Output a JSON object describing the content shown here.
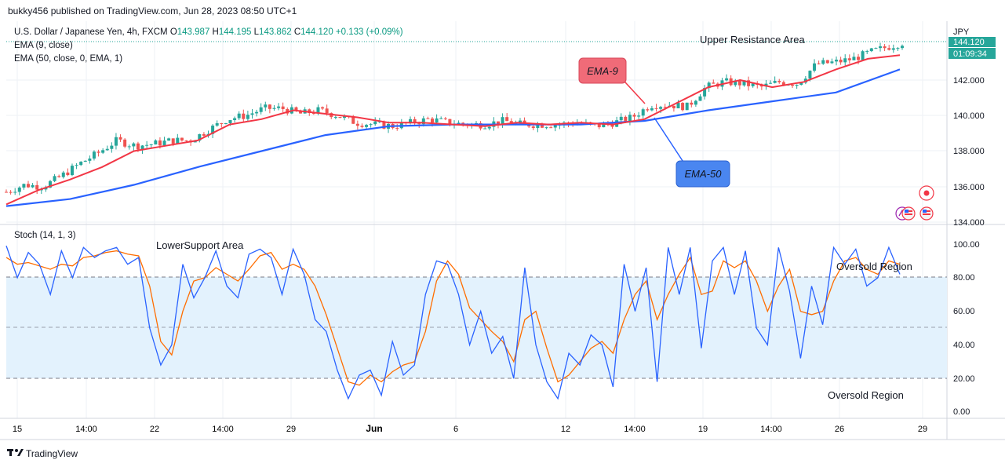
{
  "header": {
    "publisher_line": "bukky456 published on TradingView.com, Jun 28, 2023 08:50 UTC+1"
  },
  "main_legend": {
    "symbol": "U.S. Dollar / Japanese Yen, 4h, FXCM",
    "open_label": "O",
    "open": "143.987",
    "high_label": "H",
    "high": "144.195",
    "low_label": "L",
    "low": "143.862",
    "close_label": "C",
    "close": "144.120",
    "change": "+0.133 (+0.09%)",
    "ema9": "EMA (9, close)",
    "ema50": "EMA (50, close, 0, EMA, 1)"
  },
  "price_axis": {
    "currency": "JPY",
    "last_price": "144.120",
    "countdown": "01:09:34",
    "ticks": [
      "142.000",
      "140.000",
      "138.000",
      "136.000",
      "134.000"
    ]
  },
  "osc_axis": {
    "ticks": [
      "100.00",
      "80.00",
      "60.00",
      "40.00",
      "20.00",
      "0.00"
    ]
  },
  "osc_legend": "Stoch (14, 1, 3)",
  "time_axis": [
    "15",
    "14:00",
    "22",
    "14:00",
    "29",
    "Jun",
    "6",
    "12",
    "14:00",
    "19",
    "14:00",
    "26",
    "29"
  ],
  "annotations": {
    "upper_resistance": "Upper Resistance Area",
    "lower_support": "LowerSupport Area",
    "oversold_top": "Oversold Region",
    "oversold_bottom": "Oversold Region",
    "ema9_callout": "EMA-9",
    "ema50_callout": "EMA-50"
  },
  "footer": {
    "brand": "TradingView"
  },
  "colors": {
    "up": "#26a69a",
    "down": "#ef5350",
    "ema9": "#f23645",
    "ema50": "#2962ff",
    "stoch_k": "#2962ff",
    "stoch_d": "#ff6d00",
    "band": "#e3f2fd",
    "callout_red": "#f06b78",
    "callout_blue": "#4a86f0"
  },
  "chart_data": [
    {
      "type": "candlestick",
      "title": "U.S. Dollar / Japanese Yen, 4h, FXCM",
      "ylim": [
        134,
        144.7
      ],
      "x_ticks": [
        "15",
        "14:00",
        "22",
        "14:00",
        "29",
        "Jun",
        "6",
        "12",
        "14:00",
        "19",
        "14:00",
        "26",
        "29"
      ],
      "y_ticks": [
        134,
        136,
        138,
        140,
        142
      ],
      "close_path": [
        [
          0,
          135.7
        ],
        [
          6,
          136.1
        ],
        [
          12,
          136.0
        ],
        [
          18,
          136.6
        ],
        [
          24,
          137.3
        ],
        [
          30,
          137.9
        ],
        [
          36,
          138.6
        ],
        [
          42,
          138.3
        ],
        [
          48,
          138.4
        ],
        [
          54,
          138.6
        ],
        [
          60,
          138.6
        ],
        [
          66,
          139.2
        ],
        [
          72,
          139.8
        ],
        [
          78,
          140.0
        ],
        [
          84,
          140.4
        ],
        [
          90,
          140.4
        ],
        [
          96,
          140.1
        ],
        [
          102,
          140.3
        ],
        [
          108,
          140.0
        ],
        [
          114,
          139.6
        ],
        [
          120,
          139.5
        ],
        [
          126,
          139.4
        ],
        [
          132,
          139.6
        ],
        [
          138,
          139.8
        ],
        [
          144,
          139.6
        ],
        [
          150,
          139.5
        ],
        [
          156,
          139.5
        ],
        [
          162,
          139.7
        ],
        [
          168,
          139.5
        ],
        [
          174,
          139.5
        ],
        [
          180,
          139.5
        ],
        [
          186,
          139.6
        ],
        [
          192,
          139.4
        ],
        [
          198,
          139.6
        ],
        [
          204,
          139.9
        ],
        [
          210,
          140.6
        ],
        [
          216,
          140.6
        ],
        [
          222,
          140.5
        ],
        [
          228,
          141.6
        ],
        [
          234,
          141.9
        ],
        [
          240,
          141.8
        ],
        [
          246,
          141.6
        ],
        [
          252,
          141.9
        ],
        [
          258,
          141.8
        ],
        [
          264,
          142.9
        ],
        [
          270,
          143.0
        ],
        [
          276,
          143.2
        ],
        [
          282,
          143.6
        ],
        [
          288,
          143.9
        ],
        [
          292,
          144.1
        ]
      ],
      "ema9": [
        [
          0,
          135.0
        ],
        [
          20,
          135.8
        ],
        [
          40,
          136.4
        ],
        [
          60,
          137.1
        ],
        [
          80,
          138.0
        ],
        [
          100,
          138.3
        ],
        [
          120,
          138.6
        ],
        [
          140,
          139.5
        ],
        [
          160,
          139.8
        ],
        [
          180,
          140.3
        ],
        [
          200,
          140.1
        ],
        [
          220,
          139.9
        ],
        [
          240,
          139.6
        ],
        [
          260,
          139.6
        ],
        [
          280,
          139.5
        ],
        [
          300,
          139.4
        ],
        [
          320,
          139.6
        ],
        [
          340,
          139.5
        ],
        [
          360,
          139.6
        ],
        [
          380,
          139.5
        ],
        [
          400,
          139.8
        ],
        [
          420,
          140.7
        ],
        [
          440,
          141.6
        ],
        [
          460,
          142.0
        ],
        [
          480,
          141.6
        ],
        [
          500,
          141.9
        ],
        [
          520,
          142.6
        ],
        [
          540,
          143.2
        ],
        [
          560,
          143.4
        ]
      ],
      "ema50": [
        [
          0,
          134.9
        ],
        [
          40,
          135.3
        ],
        [
          80,
          136.1
        ],
        [
          120,
          137.1
        ],
        [
          160,
          138.0
        ],
        [
          200,
          138.9
        ],
        [
          240,
          139.4
        ],
        [
          280,
          139.5
        ],
        [
          320,
          139.5
        ],
        [
          360,
          139.5
        ],
        [
          400,
          139.7
        ],
        [
          440,
          140.3
        ],
        [
          480,
          140.8
        ],
        [
          520,
          141.3
        ],
        [
          560,
          142.6
        ]
      ]
    },
    {
      "type": "line",
      "title": "Stoch (14, 1, 3)",
      "ylim": [
        0,
        100
      ],
      "y_ticks": [
        0,
        20,
        40,
        60,
        80,
        100
      ],
      "bands": [
        20,
        50,
        80
      ],
      "series": [
        {
          "name": "%K",
          "values": [
            99,
            80,
            95,
            88,
            70,
            96,
            80,
            98,
            92,
            96,
            98,
            88,
            92,
            50,
            28,
            40,
            88,
            68,
            80,
            96,
            75,
            68,
            94,
            97,
            92,
            70,
            97,
            82,
            55,
            48,
            25,
            8,
            22,
            25,
            10,
            42,
            22,
            28,
            70,
            90,
            88,
            70,
            40,
            60,
            35,
            45,
            20,
            86,
            40,
            18,
            8,
            35,
            28,
            46,
            40,
            15,
            88,
            60,
            86,
            18,
            98,
            70,
            98,
            38,
            90,
            98,
            70,
            96,
            50,
            40,
            98,
            72,
            32,
            75,
            52,
            98,
            88,
            97,
            75,
            80,
            98,
            82
          ]
        },
        {
          "name": "%D",
          "values": [
            92,
            88,
            89,
            87,
            85,
            88,
            87,
            92,
            93,
            95,
            96,
            94,
            93,
            75,
            42,
            34,
            60,
            78,
            80,
            86,
            82,
            78,
            85,
            93,
            95,
            85,
            88,
            85,
            75,
            58,
            38,
            18,
            16,
            22,
            18,
            24,
            28,
            30,
            48,
            78,
            90,
            82,
            62,
            55,
            48,
            42,
            30,
            55,
            60,
            38,
            18,
            22,
            30,
            38,
            42,
            35,
            55,
            70,
            78,
            55,
            70,
            82,
            92,
            70,
            72,
            90,
            86,
            90,
            78,
            60,
            75,
            85,
            60,
            58,
            60,
            78,
            90,
            92,
            85,
            82,
            90,
            88
          ]
        }
      ]
    }
  ]
}
